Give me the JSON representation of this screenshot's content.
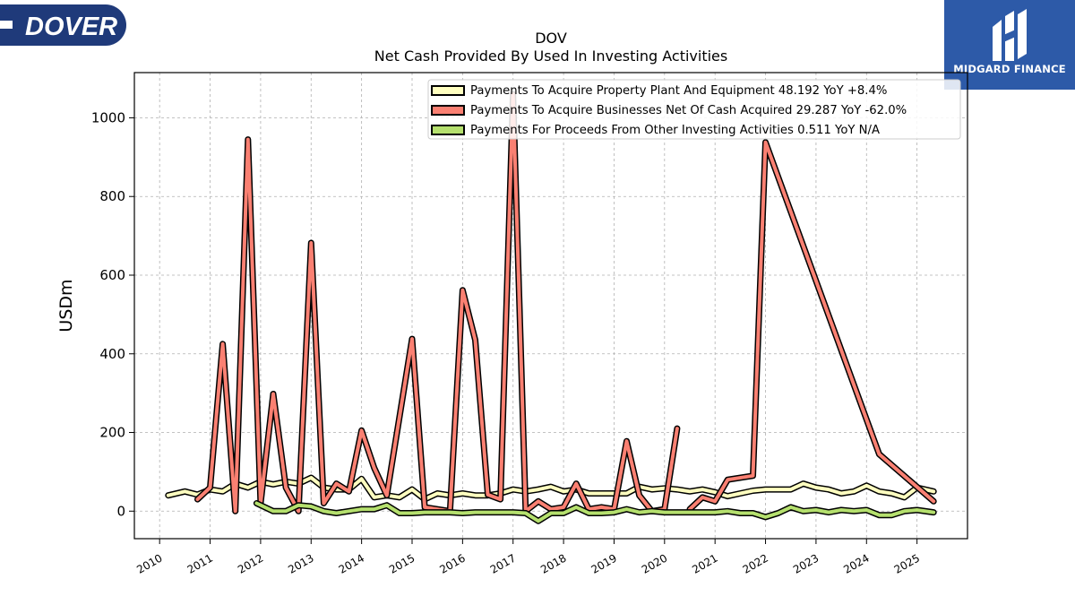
{
  "logos": {
    "left_text": "DOVER",
    "right_text": "MIDGARD FINANCE",
    "left_color": "#1f3a7a",
    "right_color": "#2d5aa8"
  },
  "chart_data": {
    "type": "line",
    "title": "DOV",
    "subtitle": "Net Cash Provided By Used In Investing Activities",
    "xlabel": "",
    "ylabel": "USDm",
    "xlim": [
      2009.5,
      2026.0
    ],
    "ylim": [
      -70,
      1115
    ],
    "x_ticks": [
      "2010",
      "2011",
      "2012",
      "2013",
      "2014",
      "2015",
      "2016",
      "2017",
      "2018",
      "2019",
      "2020",
      "2021",
      "2022",
      "2023",
      "2024",
      "2025"
    ],
    "y_ticks": [
      0,
      200,
      400,
      600,
      800,
      1000
    ],
    "grid": true,
    "legend_position": "top-right",
    "series": [
      {
        "name": "Payments To Acquire Property Plant And Equipment",
        "legend_text": "Payments To Acquire Property Plant And Equipment  48.192 YoY +8.4%",
        "color": "#ffffc0",
        "points": [
          [
            2010.17,
            40
          ],
          [
            2010.5,
            50
          ],
          [
            2010.75,
            42
          ],
          [
            2011.0,
            55
          ],
          [
            2011.25,
            50
          ],
          [
            2011.5,
            70
          ],
          [
            2011.75,
            60
          ],
          [
            2012.0,
            75
          ],
          [
            2012.25,
            68
          ],
          [
            2012.5,
            75
          ],
          [
            2012.75,
            70
          ],
          [
            2013.0,
            85
          ],
          [
            2013.25,
            60
          ],
          [
            2013.5,
            55
          ],
          [
            2013.75,
            55
          ],
          [
            2014.0,
            82
          ],
          [
            2014.25,
            35
          ],
          [
            2014.5,
            40
          ],
          [
            2014.75,
            35
          ],
          [
            2015.0,
            55
          ],
          [
            2015.25,
            30
          ],
          [
            2015.5,
            45
          ],
          [
            2015.75,
            40
          ],
          [
            2016.0,
            45
          ],
          [
            2016.25,
            40
          ],
          [
            2016.5,
            40
          ],
          [
            2016.75,
            45
          ],
          [
            2017.0,
            55
          ],
          [
            2017.25,
            50
          ],
          [
            2017.5,
            55
          ],
          [
            2017.75,
            62
          ],
          [
            2018.0,
            50
          ],
          [
            2018.25,
            55
          ],
          [
            2018.5,
            45
          ],
          [
            2018.75,
            45
          ],
          [
            2019.0,
            45
          ],
          [
            2019.25,
            45
          ],
          [
            2019.5,
            62
          ],
          [
            2019.75,
            55
          ],
          [
            2020.0,
            58
          ],
          [
            2020.25,
            55
          ],
          [
            2020.5,
            50
          ],
          [
            2020.75,
            55
          ],
          [
            2021.0,
            48
          ],
          [
            2021.25,
            38
          ],
          [
            2021.5,
            45
          ],
          [
            2021.75,
            52
          ],
          [
            2022.0,
            55
          ],
          [
            2022.25,
            55
          ],
          [
            2022.5,
            55
          ],
          [
            2022.75,
            70
          ],
          [
            2023.0,
            60
          ],
          [
            2023.25,
            55
          ],
          [
            2023.5,
            45
          ],
          [
            2023.75,
            50
          ],
          [
            2024.0,
            65
          ],
          [
            2024.25,
            50
          ],
          [
            2024.5,
            45
          ],
          [
            2024.75,
            35
          ],
          [
            2025.0,
            60
          ],
          [
            2025.33,
            50
          ]
        ]
      },
      {
        "name": "Payments To Acquire Businesses Net Of Cash Acquired",
        "legend_text": "Payments To Acquire Businesses Net Of Cash Acquired  29.287 YoY -62.0%",
        "color": "#fa8072",
        "points": [
          [
            2010.75,
            30
          ],
          [
            2011.0,
            60
          ],
          [
            2011.25,
            425
          ],
          [
            2011.5,
            0
          ],
          [
            2011.75,
            945
          ],
          [
            2012.0,
            20
          ],
          [
            2012.25,
            298
          ],
          [
            2012.5,
            60
          ],
          [
            2012.75,
            0
          ],
          [
            2013.0,
            682
          ],
          [
            2013.25,
            20
          ],
          [
            2013.5,
            70
          ],
          [
            2013.75,
            50
          ],
          [
            2014.0,
            205
          ],
          [
            2014.25,
            110
          ],
          [
            2014.5,
            40
          ],
          [
            2015.0,
            438
          ],
          [
            2015.25,
            10
          ],
          [
            2015.75,
            0
          ],
          [
            2016.0,
            562
          ],
          [
            2016.25,
            435
          ],
          [
            2016.5,
            42
          ],
          [
            2016.75,
            30
          ],
          [
            2017.0,
            1060
          ],
          [
            2017.25,
            0
          ],
          [
            2017.5,
            25
          ],
          [
            2017.75,
            5
          ],
          [
            2018.0,
            10
          ],
          [
            2018.25,
            70
          ],
          [
            2018.5,
            5
          ],
          [
            2018.75,
            10
          ],
          [
            2019.0,
            5
          ],
          [
            2019.25,
            178
          ],
          [
            2019.5,
            40
          ],
          [
            2019.75,
            0
          ],
          [
            2020.0,
            5
          ],
          [
            2020.25,
            210
          ],
          null,
          [
            2020.5,
            5
          ],
          [
            2020.75,
            35
          ],
          [
            2021.0,
            25
          ],
          [
            2021.25,
            80
          ],
          [
            2021.75,
            90
          ],
          [
            2022.0,
            938
          ],
          [
            2024.25,
            145
          ],
          [
            2025.33,
            25
          ]
        ]
      },
      {
        "name": "Payments For Proceeds From Other Investing Activities",
        "legend_text": "Payments For Proceeds From Other Investing Activities  0.511 YoY N/A",
        "color": "#b5e06e",
        "points": [
          [
            2011.92,
            20
          ],
          [
            2012.25,
            0
          ],
          [
            2012.5,
            0
          ],
          [
            2012.75,
            15
          ],
          [
            2013.0,
            12
          ],
          [
            2013.25,
            0
          ],
          [
            2013.5,
            -5
          ],
          [
            2013.75,
            0
          ],
          [
            2014.0,
            5
          ],
          [
            2014.25,
            5
          ],
          [
            2014.5,
            15
          ],
          [
            2014.75,
            -5
          ],
          [
            2015.0,
            -5
          ],
          [
            2015.25,
            -3
          ],
          [
            2015.5,
            -3
          ],
          [
            2015.75,
            -3
          ],
          [
            2016.0,
            -5
          ],
          [
            2016.25,
            -3
          ],
          [
            2016.5,
            -3
          ],
          [
            2016.75,
            -3
          ],
          [
            2017.0,
            -3
          ],
          [
            2017.25,
            -5
          ],
          [
            2017.5,
            -25
          ],
          [
            2017.75,
            -5
          ],
          [
            2018.0,
            -5
          ],
          [
            2018.25,
            10
          ],
          [
            2018.5,
            -5
          ],
          [
            2018.75,
            -5
          ],
          [
            2019.0,
            -3
          ],
          [
            2019.25,
            5
          ],
          [
            2019.5,
            -3
          ],
          [
            2019.75,
            0
          ],
          [
            2020.0,
            -3
          ],
          [
            2020.25,
            -3
          ],
          [
            2020.5,
            -3
          ],
          [
            2020.75,
            -3
          ],
          [
            2021.0,
            -3
          ],
          [
            2021.25,
            0
          ],
          [
            2021.5,
            -5
          ],
          [
            2021.75,
            -5
          ],
          [
            2022.0,
            -15
          ],
          [
            2022.25,
            -5
          ],
          [
            2022.5,
            10
          ],
          [
            2022.75,
            0
          ],
          [
            2023.0,
            3
          ],
          [
            2023.25,
            -3
          ],
          [
            2023.5,
            3
          ],
          [
            2023.75,
            0
          ],
          [
            2024.0,
            3
          ],
          [
            2024.25,
            -10
          ],
          [
            2024.5,
            -10
          ],
          [
            2024.75,
            0
          ],
          [
            2025.0,
            3
          ],
          [
            2025.33,
            -3
          ]
        ]
      }
    ]
  }
}
